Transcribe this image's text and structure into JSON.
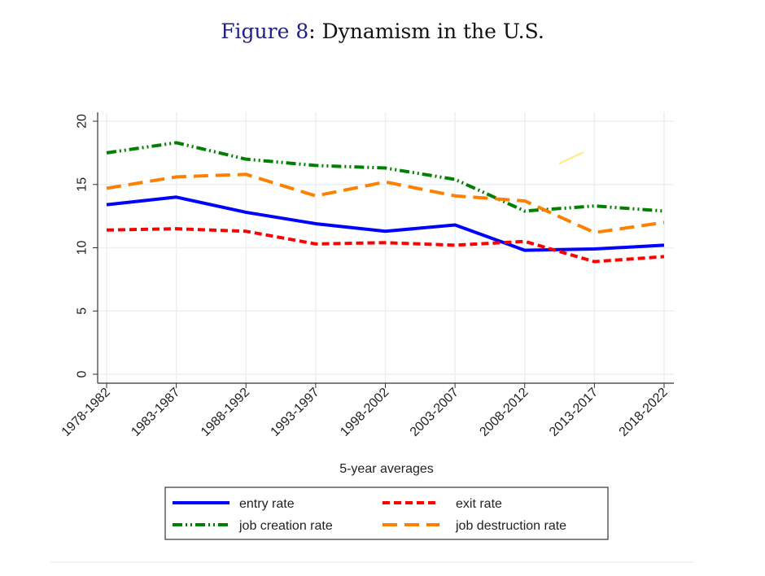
{
  "figure": {
    "label": "Figure 8",
    "separator": ": ",
    "title": "Dynamism in the U.S."
  },
  "chart_data": {
    "type": "line",
    "title": "Dynamism in the U.S.",
    "xlabel": "5-year averages",
    "ylabel": "",
    "ylim": [
      0,
      20
    ],
    "yticks": [
      0,
      5,
      10,
      15,
      20
    ],
    "grid": true,
    "legend_position": "bottom",
    "categories": [
      "1978-1982",
      "1983-1987",
      "1988-1992",
      "1993-1997",
      "1998-2002",
      "2003-2007",
      "2008-2012",
      "2013-2017",
      "2018-2022"
    ],
    "series": [
      {
        "key": "entry",
        "name": "entry rate",
        "color": "#0000ff",
        "style": "solid",
        "values": [
          13.4,
          14.0,
          12.8,
          11.9,
          11.3,
          11.8,
          9.8,
          9.9,
          10.2
        ]
      },
      {
        "key": "exit",
        "name": "exit rate",
        "color": "#ff0000",
        "style": "short-dash",
        "values": [
          11.4,
          11.5,
          11.3,
          10.3,
          10.4,
          10.2,
          10.5,
          8.9,
          9.3
        ]
      },
      {
        "key": "creation",
        "name": "job creation rate",
        "color": "#008000",
        "style": "dash-dot-dot",
        "values": [
          17.5,
          18.3,
          17.0,
          16.5,
          16.3,
          15.4,
          12.9,
          13.3,
          12.9
        ]
      },
      {
        "key": "destruction",
        "name": "job destruction rate",
        "color": "#ff8000",
        "style": "long-dash",
        "values": [
          14.7,
          15.6,
          15.8,
          14.1,
          15.2,
          14.1,
          13.7,
          11.2,
          12.0
        ]
      }
    ],
    "annotations": [
      {
        "type": "stray-mark",
        "color": "#ffe97a",
        "description": "small yellow diagonal stroke near 2013-2017 above the lines"
      }
    ]
  }
}
